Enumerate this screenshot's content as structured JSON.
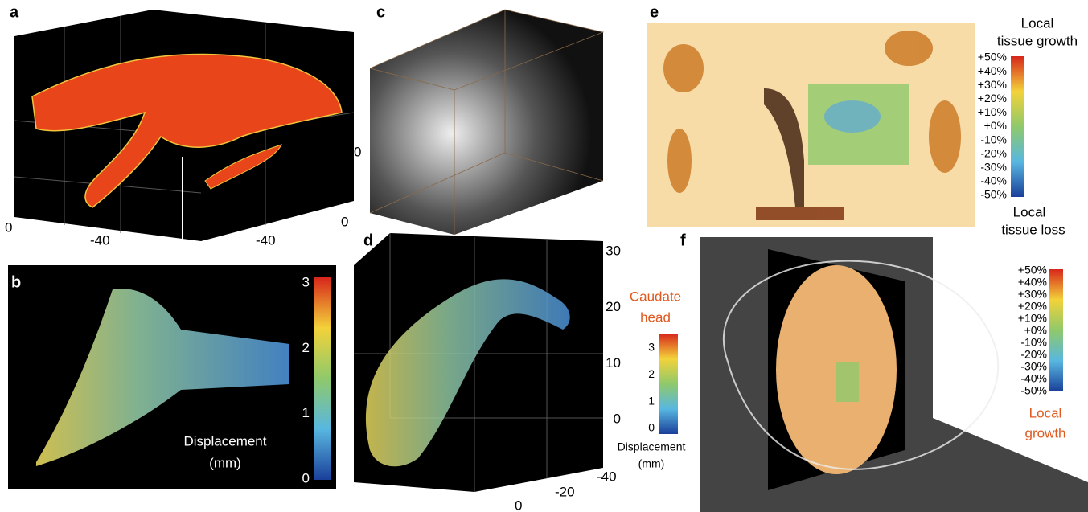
{
  "panels": {
    "a": {
      "label": "a",
      "axis_labels": [
        "0",
        "0",
        "-40",
        "-40",
        "0"
      ]
    },
    "b": {
      "label": "b",
      "colorbar_ticks": [
        "3",
        "2",
        "1",
        "0"
      ],
      "colorbar_title": [
        "Displacement",
        "(mm)"
      ]
    },
    "c": {
      "label": "c"
    },
    "d": {
      "label": "d",
      "z_ticks": [
        "30",
        "20",
        "10",
        "0"
      ],
      "y_ticks": [
        "-40",
        "-20",
        "0"
      ],
      "structure": [
        "Caudate",
        "head"
      ],
      "colorbar_ticks": [
        "3",
        "2",
        "1",
        "0"
      ],
      "colorbar_title": [
        "Displacement",
        "(mm)"
      ]
    },
    "e": {
      "label": "e",
      "top_title": [
        "Local",
        "tissue growth"
      ],
      "colorbar_ticks": [
        "+50%",
        "+40%",
        "+30%",
        "+20%",
        "+10%",
        "+0%",
        "-10%",
        "-20%",
        "-30%",
        "-40%",
        "-50%"
      ],
      "bottom_title": [
        "Local",
        "tissue loss"
      ]
    },
    "f": {
      "label": "f",
      "colorbar_ticks": [
        "+50%",
        "+40%",
        "+30%",
        "+20%",
        "+10%",
        "+0%",
        "-10%",
        "-20%",
        "-30%",
        "-40%",
        "-50%"
      ],
      "title": [
        "Local",
        "growth"
      ]
    }
  }
}
